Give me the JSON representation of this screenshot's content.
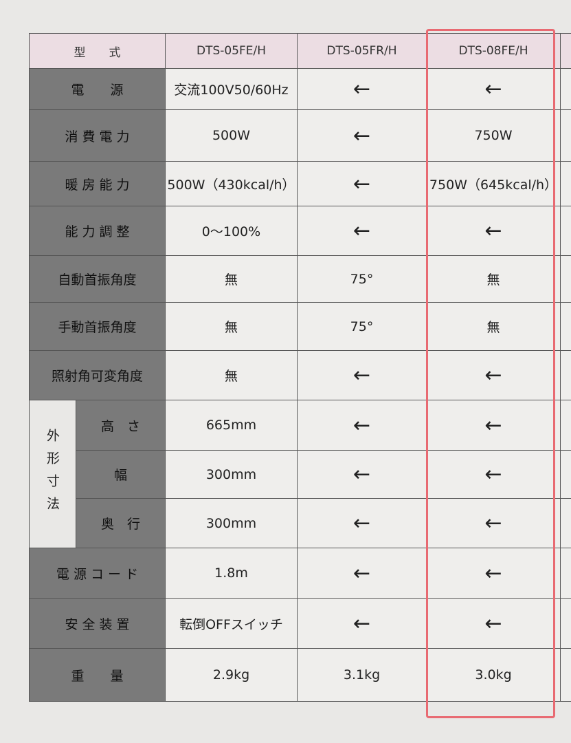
{
  "table": {
    "header": [
      "型　　式",
      "DTS-05FE/H",
      "DTS-05FR/H",
      "DTS-08FE/H"
    ],
    "dimension_group": "外形寸法",
    "rows": [
      [
        "電　　源",
        "交流100V50/60Hz",
        "←",
        "←"
      ],
      [
        "消 費 電 力",
        "500W",
        "←",
        "750W"
      ],
      [
        "暖 房 能 力",
        "500W（430kcal/h）",
        "←",
        "750W（645kcal/h）"
      ],
      [
        "能 力 調 整",
        "0～100%",
        "←",
        "←"
      ],
      [
        "自動首振角度",
        "無",
        "75°",
        "無"
      ],
      [
        "手動首振角度",
        "無",
        "75°",
        "無"
      ],
      [
        "照射角可変角度",
        "無",
        "←",
        "←"
      ],
      [
        "高　さ",
        "665mm",
        "←",
        "←"
      ],
      [
        "幅",
        "300mm",
        "←",
        "←"
      ],
      [
        "奥　行",
        "300mm",
        "←",
        "←"
      ],
      [
        "電 源 コ ー ド",
        "1.8m",
        "←",
        "←"
      ],
      [
        "安 全 装 置",
        "転倒OFFスイッチ",
        "←",
        "←"
      ],
      [
        "重　　量",
        "2.9kg",
        "3.1kg",
        "3.0kg"
      ]
    ]
  }
}
